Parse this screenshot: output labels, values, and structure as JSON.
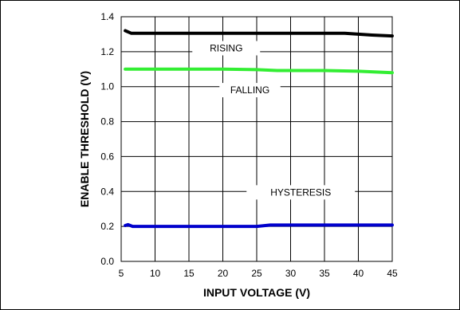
{
  "chart_data": {
    "type": "line",
    "xlabel": "INPUT VOLTAGE (V)",
    "ylabel": "ENABLE THRESHOLD (V)",
    "xlim": [
      5,
      45
    ],
    "ylim": [
      0,
      1.4
    ],
    "x_ticks": [
      "5",
      "10",
      "15",
      "20",
      "25",
      "30",
      "35",
      "40",
      "45"
    ],
    "y_ticks": [
      "0.0",
      "0.2",
      "0.4",
      "0.6",
      "0.8",
      "1.0",
      "1.2",
      "1.4"
    ],
    "grid": true,
    "series": [
      {
        "name": "RISING",
        "color": "#000000",
        "points": [
          [
            5.6,
            1.32
          ],
          [
            6.5,
            1.305
          ],
          [
            10,
            1.305
          ],
          [
            20,
            1.305
          ],
          [
            30,
            1.305
          ],
          [
            38,
            1.305
          ],
          [
            42,
            1.295
          ],
          [
            45,
            1.29
          ]
        ]
      },
      {
        "name": "FALLING",
        "color": "#33ee33",
        "points": [
          [
            5.6,
            1.1
          ],
          [
            10,
            1.1
          ],
          [
            20,
            1.1
          ],
          [
            25,
            1.097
          ],
          [
            28,
            1.092
          ],
          [
            35,
            1.092
          ],
          [
            40,
            1.088
          ],
          [
            45,
            1.08
          ]
        ]
      },
      {
        "name": "HYSTERESIS",
        "color": "#0000cc",
        "points": [
          [
            5.6,
            0.205
          ],
          [
            6,
            0.21
          ],
          [
            6.7,
            0.2
          ],
          [
            10,
            0.2
          ],
          [
            20,
            0.2
          ],
          [
            25,
            0.2
          ],
          [
            27,
            0.208
          ],
          [
            30,
            0.208
          ],
          [
            45,
            0.208
          ]
        ]
      }
    ]
  }
}
